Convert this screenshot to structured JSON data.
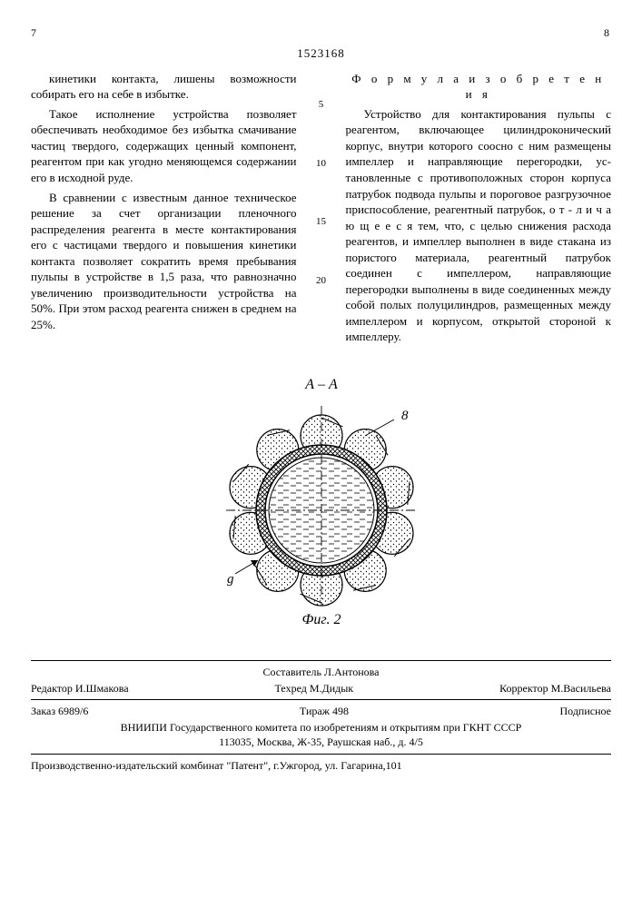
{
  "header": {
    "page_left": "7",
    "page_right": "8",
    "doc_number": "1523168"
  },
  "left_col": {
    "p1": "кинетики контакта, лишены возмож­ности собирать его на себе в избыт­ке.",
    "p2": "Такое исполнение устройства поз­воляет обеспечивать необходимое без избытка смачивание частиц твердого, содержащих ценный компонент, реаген­том при как угодно меняющемся содер­жании его в исходной руде.",
    "p3": "В сравнении с известным данное техническое решение за счет органи­зации пленочного распределения ре­агента в месте контактирования его с частицами твердого и повышения ки­нетики контакта позволяет сократить время пребывания пульпы в устрой­стве в 1,5 раза, что равнозначно уве­личению производительности устрой­ства на 50%. При этом расход реаген­та снижен в среднем на 25%."
  },
  "linenums": {
    "n5": "5",
    "n10": "10",
    "n15": "15",
    "n20": "20"
  },
  "right_col": {
    "title": "Ф о р м у л а   и з о б р е т е н и я",
    "p1": "Устройство для контактирования пульпы с реагентом, включающее ци­линдроконический корпус, внутри ко­торого соосно с ним размещены импел­лер и направляющие перегородки, ус­тановленные с противоположных сто­рон корпуса патрубок подвода пуль­пы и пороговое разгрузочное приспо­собление, реагентный патрубок, о т - л и ч а ю щ е е с я  тем, что, с целью снижения расхода реагентов, и импеллер выполнен в виде стакана из пористого материала, реагентный па­трубок соединен с импеллером, на­правляющие перегородки выполнены в виде соединенных между собой полых полуцилиндров, размещенных между импеллером и корпусом, открытой стороной к импеллеру."
  },
  "figure": {
    "section_label": "А – А",
    "callout_8": "8",
    "callout_g": "g",
    "caption": "Фиг. 2",
    "petal_count": 10,
    "colors": {
      "stroke": "#000000",
      "bg": "#ffffff"
    }
  },
  "credits": {
    "compiler": "Составитель Л.Антонова",
    "editor": "Редактор И.Шмакова",
    "tech": "Техред М.Дидык",
    "corrector": "Корректор М.Васильева",
    "order": "Заказ 6989/6",
    "circulation": "Тираж 498",
    "subscription": "Подписное",
    "org_line1": "ВНИИПИ Государственного комитета по изобретениям и открытиям при ГКНТ СССР",
    "org_line2": "113035, Москва, Ж-35, Раушская наб., д. 4/5"
  },
  "footer": {
    "line": "Производственно-издательский комбинат \"Патент\", г.Ужгород, ул. Гагарина,101"
  }
}
